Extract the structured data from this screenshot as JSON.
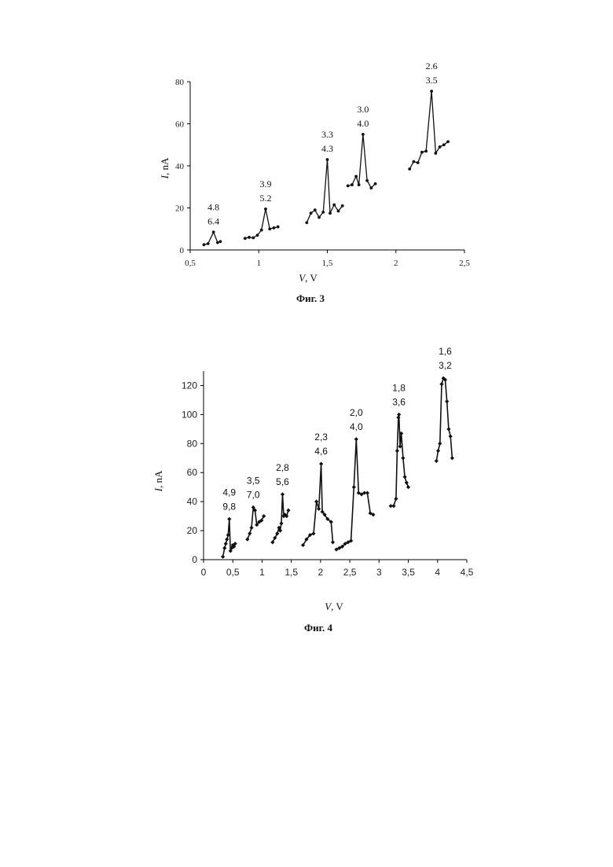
{
  "chart_data": [
    {
      "id": "fig3",
      "type": "line",
      "caption": "Фиг. 3",
      "xlabel_var": "V",
      "xlabel_unit": ", V",
      "ylabel_var": "I",
      "ylabel_unit": ", nA",
      "xlim": [
        0.5,
        2.5
      ],
      "ylim": [
        0,
        80
      ],
      "xticks": [
        0.5,
        1,
        1.5,
        2,
        2.5
      ],
      "xtick_labels": [
        "0,5",
        "1",
        "1,5",
        "2",
        "2,5"
      ],
      "yticks": [
        0,
        20,
        40,
        60,
        80
      ],
      "ytick_labels": [
        "0",
        "20",
        "40",
        "60",
        "80"
      ],
      "grid": false,
      "series": [
        {
          "x": [
            0.6,
            0.63,
            0.67,
            0.7,
            0.72
          ],
          "y": [
            2.5,
            3,
            8.5,
            3.5,
            4
          ]
        },
        {
          "x": [
            0.9,
            0.93,
            0.96,
            0.99,
            1.02,
            1.05,
            1.08,
            1.11,
            1.14
          ],
          "y": [
            5.5,
            6,
            5.8,
            7,
            9.5,
            19.5,
            10,
            10.5,
            11
          ]
        },
        {
          "x": [
            1.35,
            1.38,
            1.41,
            1.44,
            1.47,
            1.5,
            1.52,
            1.55,
            1.58,
            1.61
          ],
          "y": [
            13,
            17.5,
            19,
            15.5,
            18,
            43,
            17.5,
            21.5,
            18.5,
            21
          ]
        },
        {
          "x": [
            1.65,
            1.68,
            1.71,
            1.73,
            1.76,
            1.79,
            1.82,
            1.85
          ],
          "y": [
            30.5,
            31,
            35,
            31,
            55,
            33,
            29.5,
            31.5
          ]
        },
        {
          "x": [
            2.1,
            2.13,
            2.16,
            2.19,
            2.22,
            2.26,
            2.29,
            2.32,
            2.35,
            2.38
          ],
          "y": [
            38.5,
            42,
            41.5,
            46.5,
            47,
            75.5,
            46,
            49,
            50,
            51.5
          ]
        }
      ],
      "annotations": [
        {
          "x": 0.67,
          "y": 8.5,
          "lines": [
            "4.8",
            "6.4"
          ]
        },
        {
          "x": 1.05,
          "y": 19.5,
          "lines": [
            "3.9",
            "5.2"
          ]
        },
        {
          "x": 1.5,
          "y": 43,
          "lines": [
            "3.3",
            "4.3"
          ]
        },
        {
          "x": 1.76,
          "y": 55,
          "lines": [
            "3.0",
            "4.0"
          ]
        },
        {
          "x": 2.26,
          "y": 75.5,
          "lines": [
            "2.6",
            "3.5"
          ]
        }
      ]
    },
    {
      "id": "fig4",
      "type": "line",
      "caption": "Фиг. 4",
      "xlabel_var": "V",
      "xlabel_unit": ", V",
      "ylabel_var": "I",
      "ylabel_unit": ", nA",
      "xlim": [
        0,
        4.5
      ],
      "ylim": [
        0,
        130
      ],
      "xticks": [
        0,
        0.5,
        1,
        1.5,
        2,
        2.5,
        3,
        3.5,
        4,
        4.5
      ],
      "xtick_labels": [
        "0",
        "0,5",
        "1",
        "1,5",
        "2",
        "2,5",
        "3",
        "3,5",
        "4",
        "4,5"
      ],
      "yticks": [
        0,
        20,
        40,
        60,
        80,
        100,
        120
      ],
      "ytick_labels": [
        "0",
        "20",
        "40",
        "60",
        "80",
        "100",
        "120"
      ],
      "grid": false,
      "series": [
        {
          "x": [
            0.33,
            0.36,
            0.38,
            0.4,
            0.42,
            0.44,
            0.46,
            0.48,
            0.5,
            0.52,
            0.54
          ],
          "y": [
            2,
            8,
            11,
            14,
            17,
            28,
            6,
            8,
            10,
            9,
            11
          ]
        },
        {
          "x": [
            0.75,
            0.79,
            0.82,
            0.85,
            0.88,
            0.91,
            0.95,
            0.99,
            1.03
          ],
          "y": [
            14,
            18,
            22,
            36,
            34,
            24,
            26,
            27,
            30
          ]
        },
        {
          "x": [
            1.18,
            1.22,
            1.26,
            1.29,
            1.31,
            1.33,
            1.35,
            1.37,
            1.39,
            1.42,
            1.45
          ],
          "y": [
            12,
            15,
            18,
            22,
            20,
            25,
            45,
            30,
            31,
            30,
            34
          ]
        },
        {
          "x": [
            1.7,
            1.76,
            1.82,
            1.88,
            1.93,
            1.97,
            2.01,
            2.03,
            2.07,
            2.12,
            2.18,
            2.21
          ],
          "y": [
            10,
            14,
            17,
            18,
            40,
            35,
            66,
            33,
            31,
            28,
            26,
            12
          ]
        },
        {
          "x": [
            2.27,
            2.32,
            2.37,
            2.42,
            2.47,
            2.52,
            2.57,
            2.61,
            2.65,
            2.7,
            2.75,
            2.8,
            2.85,
            2.9
          ],
          "y": [
            7,
            8,
            9,
            11,
            12,
            13,
            50,
            83,
            46,
            45,
            46,
            46,
            32,
            31
          ]
        },
        {
          "x": [
            3.2,
            3.25,
            3.29,
            3.31,
            3.33,
            3.34,
            3.36,
            3.38,
            3.41,
            3.44,
            3.47,
            3.5
          ],
          "y": [
            37,
            37,
            42,
            75,
            98,
            100,
            78,
            87,
            70,
            57,
            53,
            50
          ]
        },
        {
          "x": [
            3.98,
            4.01,
            4.04,
            4.07,
            4.1,
            4.13,
            4.16,
            4.19,
            4.22,
            4.25
          ],
          "y": [
            68,
            75,
            80,
            121,
            125,
            124,
            109,
            90,
            85,
            70
          ]
        }
      ],
      "annotations": [
        {
          "x": 0.44,
          "y": 28,
          "lines": [
            "4,9",
            "9,8"
          ]
        },
        {
          "x": 0.85,
          "y": 36,
          "lines": [
            "3,5",
            "7,0"
          ]
        },
        {
          "x": 1.35,
          "y": 45,
          "lines": [
            "2,8",
            "5,6"
          ]
        },
        {
          "x": 2.01,
          "y": 66,
          "lines": [
            "2,3",
            "4,6"
          ]
        },
        {
          "x": 2.61,
          "y": 83,
          "lines": [
            "2,0",
            "4,0"
          ]
        },
        {
          "x": 3.34,
          "y": 100,
          "lines": [
            "1,8",
            "3,6"
          ]
        },
        {
          "x": 4.13,
          "y": 125,
          "lines": [
            "1,6",
            "3,2"
          ]
        }
      ]
    }
  ]
}
